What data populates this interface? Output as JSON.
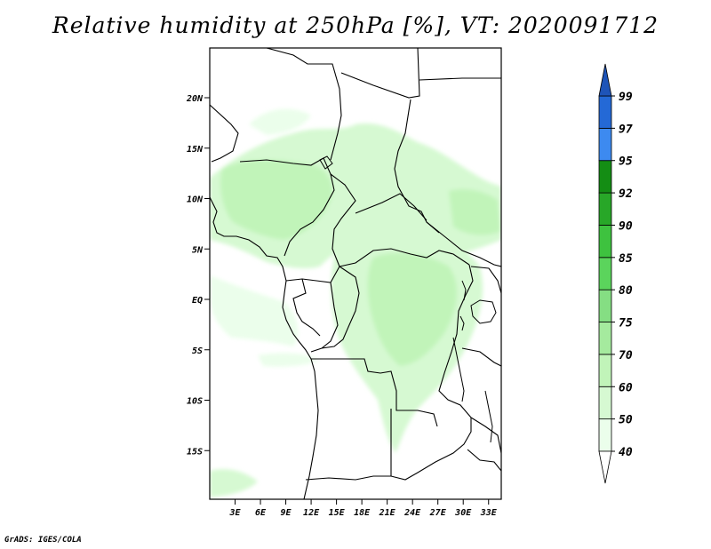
{
  "title": "Relative humidity at 250hPa [%], VT: 2020091712",
  "credit": "GrADS: IGES/COLA",
  "map": {
    "lat_labels": [
      "20N",
      "15N",
      "10N",
      "5N",
      "EQ",
      "5S",
      "10S",
      "15S"
    ],
    "lon_labels": [
      "3E",
      "6E",
      "9E",
      "12E",
      "15E",
      "18E",
      "21E",
      "24E",
      "27E",
      "30E",
      "33E"
    ],
    "lat_values": [
      20,
      15,
      10,
      5,
      0,
      -5,
      -10,
      -15
    ],
    "lon_values": [
      3,
      6,
      9,
      12,
      15,
      18,
      21,
      24,
      27,
      30,
      33
    ]
  },
  "colorbar": {
    "labels": [
      "40",
      "50",
      "60",
      "70",
      "75",
      "80",
      "85",
      "90",
      "92",
      "95",
      "97",
      "99"
    ],
    "colors": [
      "#ffffff",
      "#ebfeeb",
      "#d6f9d2",
      "#c1f4b9",
      "#a5ea9e",
      "#85de83",
      "#5bd45c",
      "#3ec23f",
      "#28a728",
      "#148d14",
      "#3d8af0",
      "#2469d6",
      "#1e54b8"
    ]
  }
}
